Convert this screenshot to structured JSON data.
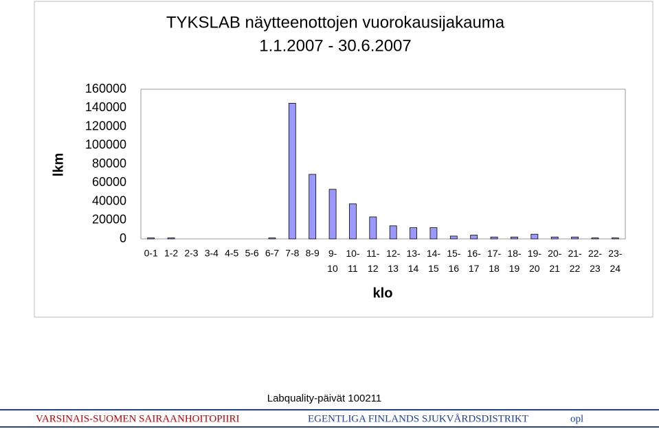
{
  "chart_data": {
    "type": "bar",
    "title": "TYKSLAB näytteenottojen vuorokausijakauma",
    "subtitle": "1.1.2007 - 30.6.2007",
    "x_label": "klo",
    "y_label": "lkm",
    "categories": [
      "0-1",
      "1-2",
      "2-3",
      "3-4",
      "4-5",
      "5-6",
      "6-7",
      "7-8",
      "8-9",
      "9-10",
      "10-11",
      "11-12",
      "12-13",
      "13-14",
      "14-15",
      "15-16",
      "16-17",
      "17-18",
      "18-19",
      "19-20",
      "20-21",
      "21-22",
      "22-23",
      "23-24"
    ],
    "values": [
      1000,
      1000,
      0,
      0,
      0,
      0,
      1000,
      145000,
      69000,
      53000,
      37500,
      23500,
      14000,
      12000,
      12000,
      3000,
      4000,
      2000,
      2000,
      5000,
      2000,
      2000,
      1000,
      1000
    ],
    "color": "#9999ff",
    "ylim": [
      0,
      160000
    ],
    "yticks": [
      0,
      20000,
      40000,
      60000,
      80000,
      100000,
      120000,
      140000,
      160000
    ],
    "grid": false
  },
  "footer": {
    "event": "Labquality-päivät 100211",
    "left": "VARSINAIS-SUOMEN SAIRAANHOITOPIIRI",
    "right": "EGENTLIGA FINLANDS SJUKVÅRDSDISTRIKT",
    "initials": "opl"
  }
}
